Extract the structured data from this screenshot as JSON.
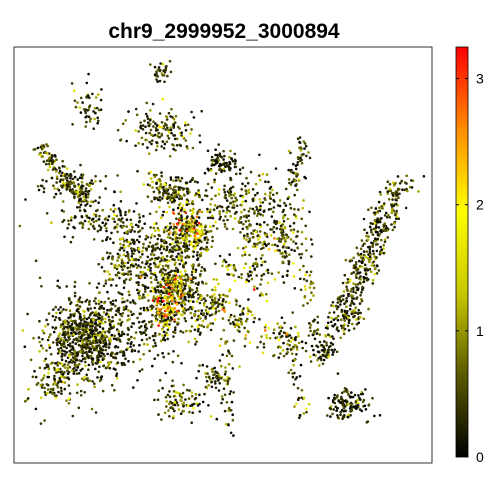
{
  "chart_data": {
    "type": "scatter",
    "title": "chr9_2999952_3000894",
    "xlabel": "",
    "ylabel": "",
    "grid": false,
    "colorbar": {
      "label": "",
      "range": [
        0,
        3.25
      ],
      "ticks": [
        0,
        1,
        2,
        3
      ],
      "tick_labels": [
        "0",
        "1",
        "2",
        "3"
      ],
      "colors": [
        "#000000",
        "#5a5a00",
        "#c8c800",
        "#ffff00",
        "#ff8c00",
        "#ff0000"
      ]
    },
    "clusters": [
      {
        "cx": 0.35,
        "cy": 0.6,
        "rx": 0.1,
        "ry": 0.13,
        "n": 380,
        "mean": 0.45
      },
      {
        "cx": 0.36,
        "cy": 0.48,
        "rx": 0.1,
        "ry": 0.05,
        "n": 170,
        "mean": 0.5
      },
      {
        "cx": 0.4,
        "cy": 0.85,
        "rx": 0.06,
        "ry": 0.035,
        "n": 90,
        "mean": 0.5
      },
      {
        "cx": 0.18,
        "cy": 0.14,
        "rx": 0.03,
        "ry": 0.045,
        "n": 50,
        "mean": 0.55
      },
      {
        "cx": 0.5,
        "cy": 0.28,
        "rx": 0.035,
        "ry": 0.025,
        "n": 80,
        "mean": 0.3
      },
      {
        "cx": 0.48,
        "cy": 0.79,
        "rx": 0.03,
        "ry": 0.03,
        "n": 50,
        "mean": 0.6
      },
      {
        "cx": 0.74,
        "cy": 0.73,
        "rx": 0.03,
        "ry": 0.03,
        "n": 70,
        "mean": 0.3
      },
      {
        "cx": 0.72,
        "cy": 0.68,
        "rx": 0.01,
        "ry": 0.02,
        "n": 15,
        "mean": 0.6
      },
      {
        "cx": 0.8,
        "cy": 0.86,
        "rx": 0.04,
        "ry": 0.03,
        "n": 120,
        "mean": 0.35
      },
      {
        "cx": 0.82,
        "cy": 0.64,
        "rx": 0.02,
        "ry": 0.03,
        "n": 30,
        "mean": 0.4
      },
      {
        "cx": 0.55,
        "cy": 0.38,
        "rx": 0.1,
        "ry": 0.06,
        "n": 220,
        "mean": 0.55
      },
      {
        "cx": 0.38,
        "cy": 0.35,
        "rx": 0.05,
        "ry": 0.03,
        "n": 120,
        "mean": 0.5
      },
      {
        "cx": 0.35,
        "cy": 0.2,
        "rx": 0.07,
        "ry": 0.05,
        "n": 140,
        "mean": 0.55
      },
      {
        "cx": 0.15,
        "cy": 0.33,
        "rx": 0.08,
        "ry": 0.03,
        "n": 100,
        "mean": 0.4
      },
      {
        "cx": 0.22,
        "cy": 0.42,
        "rx": 0.1,
        "ry": 0.035,
        "n": 150,
        "mean": 0.45
      },
      {
        "cx": 0.42,
        "cy": 0.6,
        "rx": 0.05,
        "ry": 0.08,
        "n": 140,
        "mean": 0.7
      },
      {
        "cx": 0.26,
        "cy": 0.52,
        "rx": 0.04,
        "ry": 0.05,
        "n": 80,
        "mean": 0.7
      },
      {
        "cx": 0.65,
        "cy": 0.47,
        "rx": 0.04,
        "ry": 0.06,
        "n": 100,
        "mean": 0.65
      },
      {
        "cx": 0.58,
        "cy": 0.48,
        "rx": 0.03,
        "ry": 0.05,
        "n": 60,
        "mean": 0.8
      },
      {
        "cx": 0.35,
        "cy": 0.06,
        "rx": 0.02,
        "ry": 0.02,
        "n": 30,
        "mean": 0.4
      },
      {
        "cx": 0.18,
        "cy": 0.7,
        "rx": 0.06,
        "ry": 0.07,
        "n": 330,
        "mean": 0.45
      },
      {
        "cx": 0.18,
        "cy": 0.7,
        "rx": 0.1,
        "ry": 0.09,
        "n": 450,
        "mean": 0.4
      },
      {
        "cx": 0.1,
        "cy": 0.8,
        "rx": 0.05,
        "ry": 0.06,
        "n": 120,
        "mean": 0.6
      },
      {
        "cx": 0.42,
        "cy": 0.44,
        "rx": 0.04,
        "ry": 0.04,
        "n": 160,
        "mean": 1.5
      },
      {
        "cx": 0.38,
        "cy": 0.57,
        "rx": 0.04,
        "ry": 0.03,
        "n": 120,
        "mean": 1.4
      },
      {
        "cx": 0.36,
        "cy": 0.63,
        "rx": 0.03,
        "ry": 0.04,
        "n": 120,
        "mean": 2.2
      },
      {
        "cx": 0.48,
        "cy": 0.62,
        "rx": 0.04,
        "ry": 0.04,
        "n": 80,
        "mean": 1.0
      },
      {
        "cx": 0.55,
        "cy": 0.66,
        "rx": 0.03,
        "ry": 0.04,
        "n": 50,
        "mean": 0.8
      },
      {
        "cx": 0.64,
        "cy": 0.7,
        "rx": 0.05,
        "ry": 0.04,
        "n": 70,
        "mean": 0.8
      },
      {
        "cx": 0.4,
        "cy": 0.5,
        "rx": 0.02,
        "ry": 0.03,
        "n": 20,
        "mean": 0.9
      },
      {
        "cx": 0.7,
        "cy": 0.56,
        "rx": 0.02,
        "ry": 0.07,
        "n": 30,
        "mean": 0.6
      },
      {
        "cx": 0.6,
        "cy": 0.54,
        "rx": 0.04,
        "ry": 0.02,
        "n": 25,
        "mean": 0.7
      }
    ]
  }
}
